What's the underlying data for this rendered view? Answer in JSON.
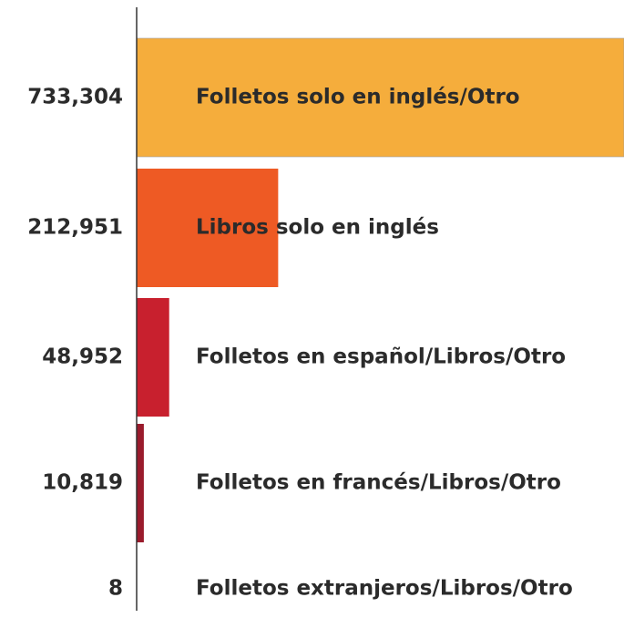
{
  "chart_data": {
    "type": "hbar",
    "categories": [
      "Folletos solo en inglés/Otro",
      "Libros solo en inglés",
      "Folletos en español/Libros/Otro",
      "Folletos en francés/Libros/Otro",
      "Folletos extranjeros/Libros/Otro"
    ],
    "values": [
      733304,
      212951,
      48952,
      10819,
      8
    ],
    "value_labels": [
      "733,304",
      "212,951",
      "48,952",
      "10,819",
      "8"
    ],
    "colors": [
      "#f5ad3c",
      "#ee5a24",
      "#c8202e",
      "#9a1b2c",
      "#6a1222"
    ]
  }
}
